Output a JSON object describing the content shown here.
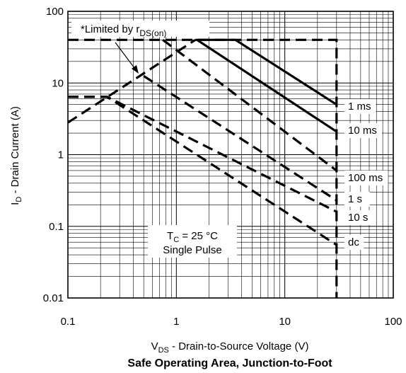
{
  "chart_data": {
    "type": "line",
    "title": "Safe Operating Area, Junction-to-Foot",
    "xlabel": {
      "main": "V",
      "sub": "DS",
      "rest": " - Drain-to-Source Voltage (V)"
    },
    "ylabel": {
      "main": "I",
      "sub": "D",
      "rest": " - Drain Current (A)"
    },
    "x_scale": "log",
    "y_scale": "log",
    "xlim": [
      0.1,
      100
    ],
    "ylim": [
      0.01,
      100
    ],
    "x_ticks": [
      "0.1",
      "1",
      "10",
      "100"
    ],
    "y_ticks": [
      "0.01",
      "0.1",
      "1",
      "10",
      "100"
    ],
    "grid": true,
    "rds_note": {
      "main": "*Limited by r",
      "sub": "DS(on)"
    },
    "conditions": {
      "line1_main": "T",
      "line1_sub": "C",
      "line1_rest": " = 25 °C",
      "line2": "Single Pulse"
    },
    "series": [
      {
        "name": "*Limited by rDS(on)",
        "style": "dashed",
        "points": [
          [
            0.1,
            2.8
          ],
          [
            1.5,
            40
          ]
        ]
      },
      {
        "name": "1 ms",
        "style": "solid",
        "points": [
          [
            1.5,
            40
          ],
          [
            3.5,
            40
          ],
          [
            30,
            5
          ]
        ]
      },
      {
        "name": "10 ms",
        "style": "solid",
        "points": [
          [
            1.55,
            40
          ],
          [
            30,
            2.1
          ]
        ]
      },
      {
        "name": "100 ms",
        "style": "dashed",
        "points": [
          [
            0.75,
            40
          ],
          [
            30,
            0.6
          ]
        ]
      },
      {
        "name": "1 s",
        "style": "dashed",
        "points": [
          [
            0.5,
            12.5
          ],
          [
            30,
            0.23
          ]
        ]
      },
      {
        "name": "10 s",
        "style": "dashed",
        "points": [
          [
            0.1,
            6.4
          ],
          [
            0.23,
            6.4
          ],
          [
            30,
            0.16
          ]
        ]
      },
      {
        "name": "dc",
        "style": "dashed",
        "points": [
          [
            0.1,
            6.4
          ],
          [
            0.23,
            6.4
          ],
          [
            30,
            0.055
          ]
        ]
      },
      {
        "name": "",
        "style": "dashed",
        "points": [
          [
            0.1,
            40
          ],
          [
            30,
            40
          ],
          [
            30,
            0.01
          ]
        ]
      }
    ],
    "curve_labels": [
      "1 ms",
      "10 ms",
      "100 ms",
      "1 s",
      "10 s",
      "dc"
    ]
  }
}
